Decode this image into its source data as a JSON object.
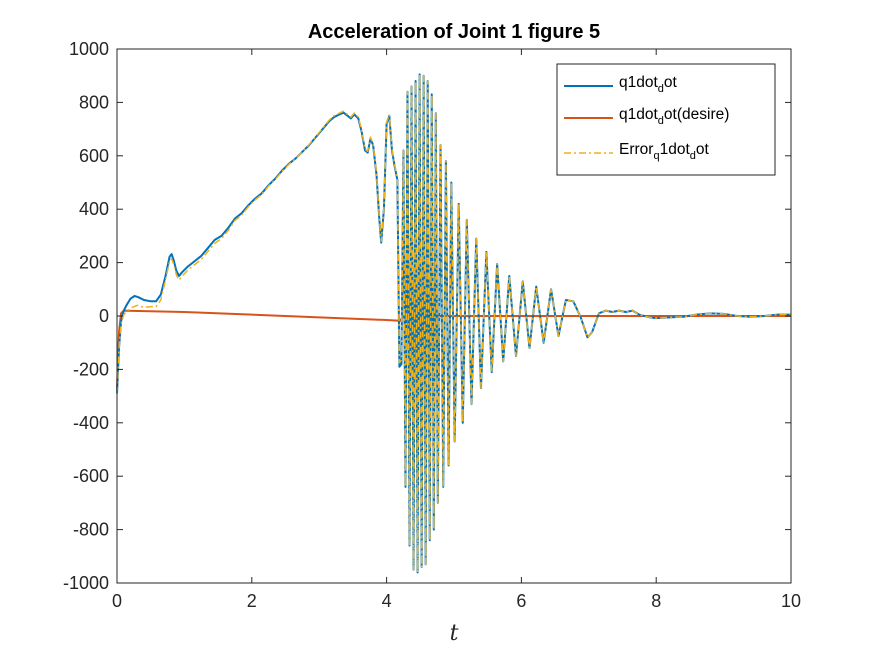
{
  "chart_data": {
    "type": "line",
    "title": "Acceleration of Joint 1 figure 5",
    "xlabel": "t",
    "ylabel": "",
    "xlim": [
      0,
      10
    ],
    "ylim": [
      -1000,
      1000
    ],
    "x_ticks": [
      "0",
      "2",
      "4",
      "6",
      "8",
      "10"
    ],
    "y_ticks": [
      "1000",
      "800",
      "600",
      "400",
      "200",
      "0",
      "-200",
      "-400",
      "-600",
      "-800",
      "-1000"
    ],
    "grid": false,
    "legend_position": "top-right",
    "series": [
      {
        "name": "q1dot_dot",
        "legend_main": "q1dot",
        "legend_sub": "d",
        "legend_tail": "ot",
        "color": "#0072BD",
        "style": "solid",
        "points": [
          [
            0,
            -290
          ],
          [
            0.03,
            -120
          ],
          [
            0.06,
            -20
          ],
          [
            0.1,
            20
          ],
          [
            0.14,
            40
          ],
          [
            0.2,
            65
          ],
          [
            0.26,
            75
          ],
          [
            0.32,
            70
          ],
          [
            0.4,
            60
          ],
          [
            0.5,
            55
          ],
          [
            0.58,
            55
          ],
          [
            0.65,
            80
          ],
          [
            0.72,
            150
          ],
          [
            0.78,
            222
          ],
          [
            0.81,
            232
          ],
          [
            0.84,
            210
          ],
          [
            0.88,
            170
          ],
          [
            0.92,
            150
          ],
          [
            0.97,
            165
          ],
          [
            1.05,
            185
          ],
          [
            1.15,
            205
          ],
          [
            1.25,
            225
          ],
          [
            1.35,
            255
          ],
          [
            1.45,
            285
          ],
          [
            1.55,
            300
          ],
          [
            1.65,
            330
          ],
          [
            1.75,
            365
          ],
          [
            1.85,
            385
          ],
          [
            1.95,
            415
          ],
          [
            2.05,
            440
          ],
          [
            2.15,
            460
          ],
          [
            2.25,
            490
          ],
          [
            2.35,
            515
          ],
          [
            2.45,
            545
          ],
          [
            2.55,
            570
          ],
          [
            2.65,
            590
          ],
          [
            2.75,
            615
          ],
          [
            2.85,
            640
          ],
          [
            2.95,
            670
          ],
          [
            3.05,
            700
          ],
          [
            3.15,
            730
          ],
          [
            3.22,
            745
          ],
          [
            3.3,
            755
          ],
          [
            3.36,
            762
          ],
          [
            3.42,
            750
          ],
          [
            3.47,
            740
          ],
          [
            3.52,
            755
          ],
          [
            3.58,
            740
          ],
          [
            3.63,
            690
          ],
          [
            3.68,
            620
          ],
          [
            3.72,
            612
          ],
          [
            3.76,
            665
          ],
          [
            3.8,
            640
          ],
          [
            3.85,
            530
          ],
          [
            3.89,
            370
          ],
          [
            3.92,
            275
          ],
          [
            3.96,
            400
          ],
          [
            4.0,
            720
          ],
          [
            4.04,
            750
          ],
          [
            4.08,
            620
          ],
          [
            4.12,
            560
          ],
          [
            4.16,
            510
          ],
          [
            4.19,
            -190
          ],
          [
            4.22,
            -180
          ],
          [
            4.25,
            620
          ],
          [
            4.28,
            -640
          ],
          [
            4.31,
            840
          ],
          [
            4.34,
            -860
          ],
          [
            4.37,
            860
          ],
          [
            4.4,
            -950
          ],
          [
            4.43,
            880
          ],
          [
            4.46,
            -960
          ],
          [
            4.49,
            905
          ],
          [
            4.52,
            -940
          ],
          [
            4.55,
            900
          ],
          [
            4.58,
            -930
          ],
          [
            4.61,
            880
          ],
          [
            4.64,
            -840
          ],
          [
            4.67,
            830
          ],
          [
            4.7,
            -800
          ],
          [
            4.73,
            760
          ],
          [
            4.76,
            -700
          ],
          [
            4.8,
            640
          ],
          [
            4.84,
            -640
          ],
          [
            4.88,
            580
          ],
          [
            4.92,
            -560
          ],
          [
            4.96,
            500
          ],
          [
            5.01,
            -470
          ],
          [
            5.07,
            420
          ],
          [
            5.13,
            -400
          ],
          [
            5.19,
            360
          ],
          [
            5.26,
            -330
          ],
          [
            5.33,
            290
          ],
          [
            5.4,
            -270
          ],
          [
            5.48,
            240
          ],
          [
            5.56,
            -210
          ],
          [
            5.64,
            195
          ],
          [
            5.73,
            -170
          ],
          [
            5.82,
            150
          ],
          [
            5.92,
            -150
          ],
          [
            6.02,
            130
          ],
          [
            6.12,
            -120
          ],
          [
            6.22,
            110
          ],
          [
            6.33,
            -100
          ],
          [
            6.44,
            100
          ],
          [
            6.55,
            -75
          ],
          [
            6.66,
            60
          ],
          [
            6.77,
            55
          ],
          [
            6.88,
            -5
          ],
          [
            6.98,
            -80
          ],
          [
            7.05,
            -60
          ],
          [
            7.15,
            10
          ],
          [
            7.25,
            20
          ],
          [
            7.35,
            15
          ],
          [
            7.45,
            20
          ],
          [
            7.55,
            15
          ],
          [
            7.65,
            20
          ],
          [
            7.75,
            5
          ],
          [
            7.9,
            -5
          ],
          [
            8.0,
            -8
          ],
          [
            8.2,
            -5
          ],
          [
            8.4,
            -3
          ],
          [
            8.6,
            5
          ],
          [
            8.8,
            10
          ],
          [
            9.0,
            8
          ],
          [
            9.2,
            0
          ],
          [
            9.4,
            -3
          ],
          [
            9.6,
            0
          ],
          [
            9.8,
            5
          ],
          [
            10,
            5
          ]
        ]
      },
      {
        "name": "q1dot_dot(desire)",
        "legend_main": "q1dot",
        "legend_sub": "d",
        "legend_tail": "ot(desire)",
        "color": "#D95319",
        "style": "solid",
        "points": [
          [
            0,
            -270
          ],
          [
            0.03,
            -60
          ],
          [
            0.06,
            10
          ],
          [
            0.1,
            20
          ],
          [
            1.0,
            15
          ],
          [
            2.0,
            5
          ],
          [
            3.0,
            -5
          ],
          [
            4.0,
            -15
          ],
          [
            4.2,
            -18
          ],
          [
            4.25,
            0
          ],
          [
            5.0,
            0
          ],
          [
            10,
            0
          ]
        ]
      },
      {
        "name": "Error_q1dot_dot",
        "legend_main": "Error",
        "legend_sub": "q",
        "legend_tail": "1dot",
        "legend_sub2": "d",
        "legend_tail2": "ot",
        "color": "#EDB120",
        "style": "dash-dot",
        "points": [
          [
            0,
            -290
          ],
          [
            0.03,
            -120
          ],
          [
            0.06,
            -30
          ],
          [
            0.1,
            5
          ],
          [
            0.14,
            15
          ],
          [
            0.2,
            30
          ],
          [
            0.3,
            40
          ],
          [
            0.4,
            32
          ],
          [
            0.5,
            35
          ],
          [
            0.58,
            35
          ],
          [
            0.65,
            60
          ],
          [
            0.72,
            135
          ],
          [
            0.78,
            205
          ],
          [
            0.81,
            215
          ],
          [
            0.84,
            195
          ],
          [
            0.88,
            155
          ],
          [
            0.92,
            135
          ],
          [
            0.97,
            150
          ],
          [
            1.05,
            172
          ],
          [
            1.15,
            192
          ],
          [
            1.25,
            212
          ],
          [
            1.35,
            242
          ],
          [
            1.45,
            272
          ],
          [
            1.55,
            290
          ],
          [
            1.65,
            320
          ],
          [
            1.75,
            358
          ],
          [
            1.85,
            378
          ],
          [
            1.95,
            410
          ],
          [
            2.05,
            435
          ],
          [
            2.15,
            456
          ],
          [
            2.25,
            487
          ],
          [
            2.35,
            512
          ],
          [
            2.45,
            542
          ],
          [
            2.55,
            568
          ],
          [
            2.65,
            590
          ],
          [
            2.75,
            615
          ],
          [
            2.85,
            642
          ],
          [
            2.95,
            672
          ],
          [
            3.05,
            703
          ],
          [
            3.15,
            734
          ],
          [
            3.22,
            750
          ],
          [
            3.3,
            760
          ],
          [
            3.36,
            767
          ],
          [
            3.42,
            755
          ],
          [
            3.47,
            745
          ],
          [
            3.52,
            760
          ],
          [
            3.58,
            745
          ],
          [
            3.63,
            695
          ],
          [
            3.68,
            625
          ],
          [
            3.72,
            617
          ],
          [
            3.76,
            670
          ],
          [
            3.8,
            645
          ],
          [
            3.85,
            535
          ],
          [
            3.89,
            375
          ],
          [
            3.92,
            280
          ],
          [
            3.96,
            405
          ],
          [
            4.0,
            725
          ],
          [
            4.04,
            755
          ],
          [
            4.08,
            625
          ],
          [
            4.12,
            565
          ],
          [
            4.16,
            515
          ],
          [
            4.19,
            -175
          ],
          [
            4.22,
            -165
          ],
          [
            4.25,
            620
          ],
          [
            4.28,
            -640
          ],
          [
            4.31,
            840
          ],
          [
            4.34,
            -860
          ],
          [
            4.37,
            860
          ],
          [
            4.4,
            -950
          ],
          [
            4.43,
            880
          ],
          [
            4.46,
            -960
          ],
          [
            4.49,
            905
          ],
          [
            4.52,
            -940
          ],
          [
            4.55,
            900
          ],
          [
            4.58,
            -930
          ],
          [
            4.61,
            880
          ],
          [
            4.64,
            -840
          ],
          [
            4.67,
            830
          ],
          [
            4.7,
            -800
          ],
          [
            4.73,
            760
          ],
          [
            4.76,
            -700
          ],
          [
            4.8,
            640
          ],
          [
            4.84,
            -640
          ],
          [
            4.88,
            580
          ],
          [
            4.92,
            -560
          ],
          [
            4.96,
            500
          ],
          [
            5.01,
            -470
          ],
          [
            5.07,
            420
          ],
          [
            5.13,
            -400
          ],
          [
            5.19,
            360
          ],
          [
            5.26,
            -330
          ],
          [
            5.33,
            290
          ],
          [
            5.4,
            -270
          ],
          [
            5.48,
            240
          ],
          [
            5.56,
            -210
          ],
          [
            5.64,
            195
          ],
          [
            5.73,
            -170
          ],
          [
            5.82,
            150
          ],
          [
            5.92,
            -150
          ],
          [
            6.02,
            130
          ],
          [
            6.12,
            -120
          ],
          [
            6.22,
            110
          ],
          [
            6.33,
            -100
          ],
          [
            6.44,
            100
          ],
          [
            6.55,
            -75
          ],
          [
            6.66,
            60
          ],
          [
            6.77,
            55
          ],
          [
            6.88,
            -5
          ],
          [
            6.98,
            -80
          ],
          [
            7.05,
            -60
          ],
          [
            7.15,
            10
          ],
          [
            7.25,
            20
          ],
          [
            7.35,
            15
          ],
          [
            7.45,
            20
          ],
          [
            7.55,
            15
          ],
          [
            7.65,
            20
          ],
          [
            7.75,
            5
          ],
          [
            7.9,
            -5
          ],
          [
            8.0,
            -8
          ],
          [
            8.2,
            -5
          ],
          [
            8.4,
            -3
          ],
          [
            8.6,
            5
          ],
          [
            8.8,
            10
          ],
          [
            9.0,
            8
          ],
          [
            9.2,
            0
          ],
          [
            9.4,
            -3
          ],
          [
            9.6,
            0
          ],
          [
            9.8,
            5
          ],
          [
            10,
            5
          ]
        ]
      }
    ]
  }
}
